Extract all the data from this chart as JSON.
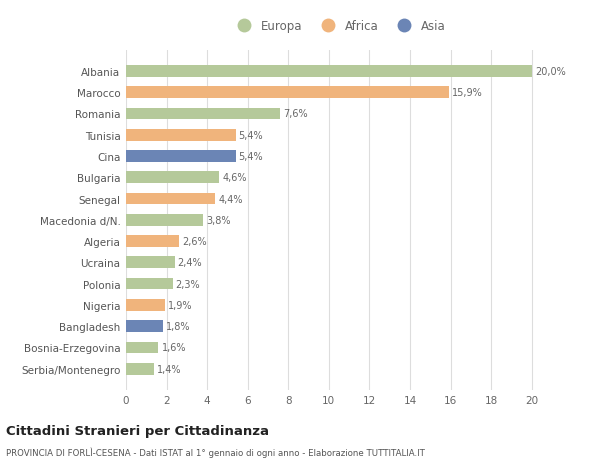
{
  "countries": [
    "Albania",
    "Marocco",
    "Romania",
    "Tunisia",
    "Cina",
    "Bulgaria",
    "Senegal",
    "Macedonia d/N.",
    "Algeria",
    "Ucraina",
    "Polonia",
    "Nigeria",
    "Bangladesh",
    "Bosnia-Erzegovina",
    "Serbia/Montenegro"
  ],
  "values": [
    20.0,
    15.9,
    7.6,
    5.4,
    5.4,
    4.6,
    4.4,
    3.8,
    2.6,
    2.4,
    2.3,
    1.9,
    1.8,
    1.6,
    1.4
  ],
  "labels": [
    "20,0%",
    "15,9%",
    "7,6%",
    "5,4%",
    "5,4%",
    "4,6%",
    "4,4%",
    "3,8%",
    "2,6%",
    "2,4%",
    "2,3%",
    "1,9%",
    "1,8%",
    "1,6%",
    "1,4%"
  ],
  "continents": [
    "Europa",
    "Africa",
    "Europa",
    "Africa",
    "Asia",
    "Europa",
    "Africa",
    "Europa",
    "Africa",
    "Europa",
    "Europa",
    "Africa",
    "Asia",
    "Europa",
    "Europa"
  ],
  "colors": {
    "Europa": "#b5c99a",
    "Africa": "#f0b47c",
    "Asia": "#6b85b5"
  },
  "xlim": [
    0,
    21
  ],
  "xticks": [
    0,
    2,
    4,
    6,
    8,
    10,
    12,
    14,
    16,
    18,
    20
  ],
  "title": "Cittadini Stranieri per Cittadinanza",
  "subtitle": "PROVINCIA DI FORLÌ-CESENA - Dati ISTAT al 1° gennaio di ogni anno - Elaborazione TUTTITALIA.IT",
  "bg_color": "#ffffff",
  "grid_color": "#dddddd",
  "bar_height": 0.55
}
